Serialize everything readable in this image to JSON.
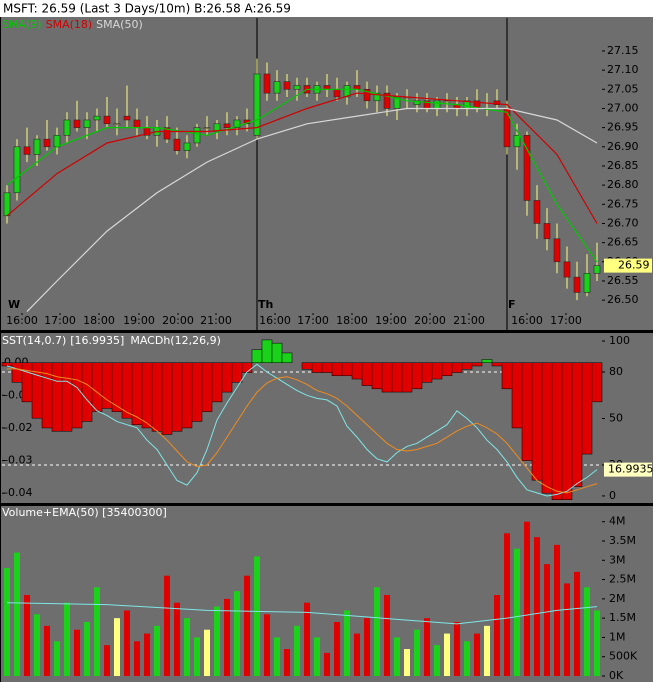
{
  "header": "MSFT: 26.59 (Last 3 Days/10m)  B:26.58 A:26.59",
  "chart_data": [
    {
      "type": "candlestick",
      "candles": [
        [
          26.72,
          26.8,
          26.7,
          26.78
        ],
        [
          26.78,
          26.92,
          26.76,
          26.9
        ],
        [
          26.9,
          26.95,
          26.86,
          26.88
        ],
        [
          26.88,
          26.93,
          26.85,
          26.92
        ],
        [
          26.92,
          26.97,
          26.89,
          26.9
        ],
        [
          26.9,
          26.95,
          26.88,
          26.93
        ],
        [
          26.93,
          26.99,
          26.91,
          26.97
        ],
        [
          26.97,
          27.02,
          26.94,
          26.95
        ],
        [
          26.95,
          26.99,
          26.92,
          26.97
        ],
        [
          26.97,
          27.0,
          26.94,
          26.98
        ],
        [
          26.98,
          27.03,
          26.95,
          26.96
        ],
        [
          26.96,
          27.0,
          26.93,
          26.96
        ],
        [
          26.98,
          27.06,
          26.95,
          26.97
        ],
        [
          26.97,
          27.0,
          26.93,
          26.95
        ],
        [
          26.95,
          26.98,
          26.92,
          26.93
        ],
        [
          26.93,
          26.97,
          26.9,
          26.95
        ],
        [
          26.95,
          26.98,
          26.91,
          26.92
        ],
        [
          26.92,
          26.95,
          26.88,
          26.89
        ],
        [
          26.89,
          26.93,
          26.87,
          26.91
        ],
        [
          26.91,
          26.96,
          26.9,
          26.95
        ],
        [
          26.95,
          26.98,
          26.93,
          26.95
        ],
        [
          26.94,
          26.97,
          26.92,
          26.96
        ],
        [
          26.96,
          26.99,
          26.93,
          26.95
        ],
        [
          26.95,
          26.98,
          26.93,
          26.97
        ],
        [
          26.97,
          27.0,
          26.94,
          26.96
        ],
        [
          26.93,
          27.13,
          26.92,
          27.09
        ],
        [
          27.09,
          27.12,
          27.02,
          27.04
        ],
        [
          27.04,
          27.1,
          27.02,
          27.07
        ],
        [
          27.07,
          27.09,
          27.03,
          27.05
        ],
        [
          27.05,
          27.08,
          27.02,
          27.06
        ],
        [
          27.06,
          27.08,
          27.03,
          27.04
        ],
        [
          27.04,
          27.07,
          27.02,
          27.06
        ],
        [
          27.06,
          27.09,
          27.03,
          27.05
        ],
        [
          27.05,
          27.08,
          27.02,
          27.03
        ],
        [
          27.03,
          27.07,
          27.01,
          27.06
        ],
        [
          27.06,
          27.1,
          27.03,
          27.05
        ],
        [
          27.05,
          27.07,
          27.0,
          27.02
        ],
        [
          27.02,
          27.06,
          26.99,
          27.04
        ],
        [
          27.04,
          27.06,
          26.98,
          27.0
        ],
        [
          27.0,
          27.04,
          26.97,
          27.03
        ],
        [
          27.03,
          27.05,
          27.0,
          27.03
        ],
        [
          27.01,
          27.04,
          26.99,
          27.02
        ],
        [
          27.02,
          27.04,
          26.99,
          27.0
        ],
        [
          27.0,
          27.03,
          26.98,
          27.02
        ],
        [
          27.02,
          27.04,
          26.99,
          27.02
        ],
        [
          27.01,
          27.03,
          26.98,
          27.0
        ],
        [
          27.0,
          27.03,
          26.98,
          27.02
        ],
        [
          27.02,
          27.05,
          26.99,
          27.0
        ],
        [
          27.0,
          27.04,
          26.98,
          27.0
        ],
        [
          27.02,
          27.05,
          27.0,
          27.01
        ],
        [
          27.0,
          27.02,
          26.88,
          26.9
        ],
        [
          26.9,
          26.96,
          26.84,
          26.93
        ],
        [
          26.93,
          26.94,
          26.72,
          26.76
        ],
        [
          26.76,
          26.8,
          26.66,
          26.7
        ],
        [
          26.7,
          26.74,
          26.63,
          26.66
        ],
        [
          26.66,
          26.7,
          26.57,
          26.6
        ],
        [
          26.6,
          26.64,
          26.53,
          26.56
        ],
        [
          26.56,
          26.6,
          26.5,
          26.52
        ],
        [
          26.52,
          26.62,
          26.51,
          26.57
        ],
        [
          26.57,
          26.65,
          26.55,
          26.59
        ]
      ],
      "candle_colors": {
        "up": "#19d219",
        "down": "#e00000",
        "flat": "#ffff80",
        "wick": "#ffff80"
      },
      "series": [
        {
          "name": "SMA(9)",
          "color": "#00c800",
          "x": [
            0,
            5,
            10,
            15,
            20,
            25,
            30,
            35,
            40,
            45,
            50,
            55,
            59
          ],
          "values": [
            26.8,
            26.9,
            26.95,
            26.95,
            26.93,
            26.97,
            27.05,
            27.05,
            27.02,
            27.01,
            26.99,
            26.75,
            26.6
          ]
        },
        {
          "name": "SMA(18)",
          "color": "#d00000",
          "x": [
            0,
            5,
            10,
            15,
            20,
            25,
            30,
            35,
            40,
            45,
            50,
            55,
            59
          ],
          "values": [
            26.72,
            26.83,
            26.91,
            26.94,
            26.94,
            26.95,
            27.0,
            27.04,
            27.03,
            27.02,
            27.01,
            26.88,
            26.7
          ]
        },
        {
          "name": "SMA(50)",
          "color": "#d8d8d8",
          "x": [
            2,
            5,
            10,
            15,
            20,
            25,
            30,
            35,
            40,
            45,
            50,
            55,
            59
          ],
          "values": [
            26.47,
            26.55,
            26.68,
            26.78,
            26.86,
            26.92,
            26.96,
            26.98,
            27.0,
            27.0,
            27.0,
            26.97,
            26.91
          ]
        }
      ],
      "xlim": [
        -0.5,
        59.5
      ],
      "ylim": [
        26.469,
        27.236
      ],
      "yticks": [
        {
          "value": 26.5,
          "label": "26.50"
        },
        {
          "value": 26.55,
          "label": "26.55"
        },
        {
          "value": 26.6,
          "label": "26.60"
        },
        {
          "value": 26.65,
          "label": "26.65"
        },
        {
          "value": 26.7,
          "label": "26.70"
        },
        {
          "value": 26.75,
          "label": "26.75"
        },
        {
          "value": 26.8,
          "label": "26.80"
        },
        {
          "value": 26.85,
          "label": "26.85"
        },
        {
          "value": 26.9,
          "label": "26.90"
        },
        {
          "value": 26.95,
          "label": "26.95"
        },
        {
          "value": 27.0,
          "label": "27.00"
        },
        {
          "value": 27.05,
          "label": "27.05"
        },
        {
          "value": 27.1,
          "label": "27.10"
        },
        {
          "value": 27.15,
          "label": "27.15"
        }
      ],
      "xticks": [
        {
          "value": 1.5,
          "label": "16:00"
        },
        {
          "value": 5.3,
          "label": "17:00"
        },
        {
          "value": 9.2,
          "label": "18:00"
        },
        {
          "value": 13.2,
          "label": "19:00"
        },
        {
          "value": 17.1,
          "label": "20:00"
        },
        {
          "value": 20.9,
          "label": "21:00"
        },
        {
          "value": 26.8,
          "label": "16:00"
        },
        {
          "value": 30.6,
          "label": "17:00"
        },
        {
          "value": 34.5,
          "label": "18:00"
        },
        {
          "value": 38.4,
          "label": "19:00"
        },
        {
          "value": 42.3,
          "label": "20:00"
        },
        {
          "value": 46.2,
          "label": "21:00"
        },
        {
          "value": 52,
          "label": "16:00"
        },
        {
          "value": 55.9,
          "label": "17:00"
        }
      ],
      "day_labels": [
        {
          "value": 0,
          "label": "W"
        },
        {
          "value": 25,
          "label": "Th"
        },
        {
          "value": 50,
          "label": "F"
        }
      ]
    },
    {
      "type": "macd_sst",
      "series": [
        {
          "name": "MACDh(12,26,9)",
          "axis": "y",
          "up_color": "#19d219",
          "down_color": "#e00000",
          "values": [
            -0.001,
            -0.006,
            -0.012,
            -0.017,
            -0.02,
            -0.021,
            -0.021,
            -0.02,
            -0.018,
            -0.015,
            -0.014,
            -0.015,
            -0.017,
            -0.019,
            -0.02,
            -0.021,
            -0.022,
            -0.021,
            -0.02,
            -0.018,
            -0.015,
            -0.012,
            -0.009,
            -0.006,
            -0.003,
            0.004,
            0.007,
            0.006,
            0.003,
            0.0,
            -0.002,
            -0.003,
            -0.003,
            -0.004,
            -0.004,
            -0.005,
            -0.007,
            -0.008,
            -0.009,
            -0.009,
            -0.009,
            -0.008,
            -0.006,
            -0.005,
            -0.004,
            -0.003,
            -0.002,
            -0.001,
            0.001,
            -0.001,
            -0.008,
            -0.02,
            -0.03,
            -0.036,
            -0.04,
            -0.042,
            -0.042,
            -0.038,
            -0.028,
            -0.012
          ]
        },
        {
          "name": "SST(14,0.7)",
          "axis": "y2",
          "color": "#7fe6e6",
          "values": [
            84,
            82,
            80,
            78,
            76,
            74,
            74,
            70,
            62,
            55,
            52,
            48,
            46,
            44,
            36,
            30,
            20,
            10,
            7,
            15,
            30,
            49,
            60,
            70,
            80,
            85,
            80,
            76,
            72,
            68,
            65,
            63,
            62,
            58,
            45,
            38,
            30,
            24,
            22,
            28,
            32,
            34,
            38,
            42,
            46,
            55,
            50,
            44,
            36,
            30,
            22,
            12,
            4,
            2,
            0,
            1,
            3,
            8,
            12,
            16.9935
          ]
        },
        {
          "axis": "y2",
          "color": "#f08c1e",
          "values": [
            82,
            82,
            81,
            80,
            79,
            77,
            76,
            75,
            72,
            67,
            62,
            58,
            54,
            51,
            47,
            42,
            36,
            29,
            22,
            19,
            20,
            28,
            38,
            48,
            58,
            67,
            73,
            76,
            77,
            75,
            72,
            68,
            66,
            63,
            58,
            52,
            46,
            40,
            34,
            30,
            29,
            30,
            32,
            34,
            38,
            42,
            45,
            47,
            44,
            40,
            34,
            26,
            18,
            10,
            6,
            3,
            2,
            4,
            6,
            8
          ]
        }
      ],
      "title_value": "[16.9935]",
      "xlim": [
        -0.5,
        59.5
      ],
      "ylim": [
        -0.0427,
        0.0085
      ],
      "yticks": [
        {
          "value": 0,
          "label": "0.00"
        },
        {
          "value": -0.01,
          "label": "-0.01"
        },
        {
          "value": -0.02,
          "label": "-0.02"
        },
        {
          "value": -0.03,
          "label": "-0.03"
        },
        {
          "value": -0.04,
          "label": "-0.04"
        }
      ],
      "y2lim": [
        -3.9,
        103.9
      ],
      "y2ticks": [
        0,
        20,
        50,
        80,
        100
      ],
      "y2_dashed": [
        80,
        20
      ]
    },
    {
      "type": "volume",
      "title": "Volume+EMA(50) [35400300]",
      "values": [
        2800000,
        3200000,
        2100000,
        1600000,
        1300000,
        900000,
        1900000,
        1200000,
        1400000,
        2300000,
        800000,
        1500000,
        1700000,
        900000,
        1100000,
        1300000,
        2600000,
        1900000,
        1500000,
        1000000,
        1200000,
        1800000,
        2000000,
        2200000,
        2600000,
        3100000,
        1600000,
        1000000,
        700000,
        1300000,
        1900000,
        1000000,
        600000,
        1400000,
        1700000,
        1100000,
        1500000,
        2300000,
        2100000,
        1000000,
        700000,
        1200000,
        1500000,
        800000,
        1100000,
        1400000,
        900000,
        1100000,
        1300000,
        2100000,
        3700000,
        3300000,
        4000000,
        3600000,
        2900000,
        3400000,
        2400000,
        2700000,
        2300000,
        1700000
      ],
      "ema": {
        "color": "#7fe6e6",
        "x": [
          0,
          10,
          20,
          30,
          40,
          45,
          50,
          55,
          59
        ],
        "values": [
          1900000,
          1850000,
          1700000,
          1650000,
          1450000,
          1350000,
          1500000,
          1700000,
          1800000
        ]
      },
      "xlim": [
        -0.5,
        59.5
      ],
      "ylim": [
        0,
        4200000
      ],
      "yticks": [
        {
          "value": 0,
          "label": "0K"
        },
        {
          "value": 500000,
          "label": "500K"
        },
        {
          "value": 1000000,
          "label": "1M"
        },
        {
          "value": 1500000,
          "label": "1.5M"
        },
        {
          "value": 2000000,
          "label": "2M"
        },
        {
          "value": 2500000,
          "label": "2.5M"
        },
        {
          "value": 3000000,
          "label": "3M"
        },
        {
          "value": 3500000,
          "label": "3.5M"
        },
        {
          "value": 4000000,
          "label": "4M"
        }
      ]
    }
  ]
}
